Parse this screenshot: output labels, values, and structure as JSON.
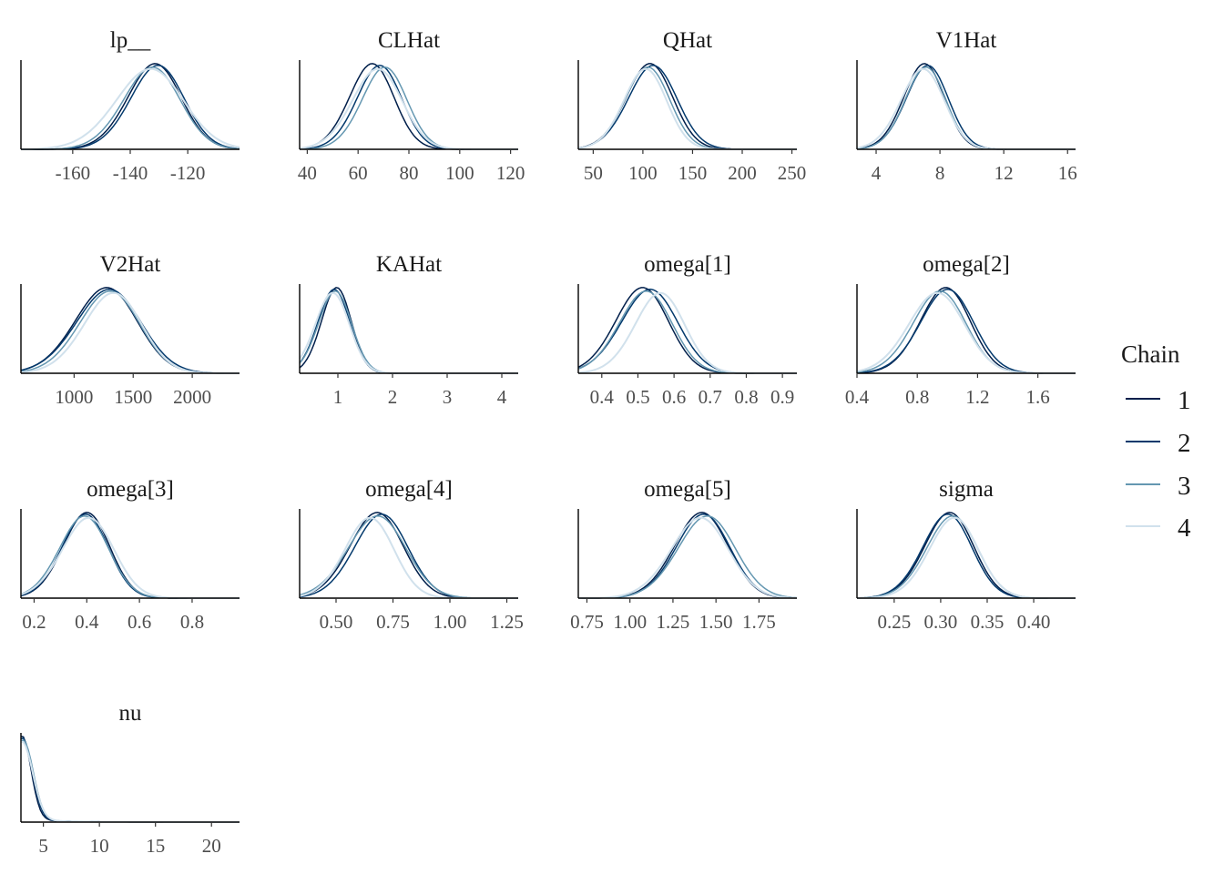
{
  "chart_data": {
    "type": "density",
    "legend": {
      "title": "Chain",
      "placement": "right",
      "entries": [
        "1",
        "2",
        "3",
        "4"
      ],
      "colors": [
        "#011f4b",
        "#03396c",
        "#6497b1",
        "#d1e1ec"
      ]
    },
    "panels": [
      {
        "name": "lp__",
        "xlim": [
          -178,
          -102
        ],
        "ticks": [
          -160,
          -140,
          -120
        ],
        "tick_labels": [
          "-160",
          "-140",
          "-120"
        ],
        "series": [
          {
            "chain": "1",
            "mode": -133,
            "sd": 9.5
          },
          {
            "chain": "2",
            "mode": -132,
            "sd": 9.5
          },
          {
            "chain": "3",
            "mode": -134,
            "sd": 10
          },
          {
            "chain": "4",
            "mode": -135,
            "sd": 12
          }
        ]
      },
      {
        "name": "CLHat",
        "xlim": [
          37,
          123
        ],
        "ticks": [
          40,
          60,
          80,
          100,
          120
        ],
        "tick_labels": [
          "40",
          "60",
          "80",
          "100",
          "120"
        ],
        "series": [
          {
            "chain": "1",
            "mode": 64,
            "sd": 9
          },
          {
            "chain": "2",
            "mode": 67,
            "sd": 9
          },
          {
            "chain": "3",
            "mode": 69,
            "sd": 9
          },
          {
            "chain": "4",
            "mode": 66,
            "sd": 10
          }
        ]
      },
      {
        "name": "QHat",
        "xlim": [
          35,
          255
        ],
        "ticks": [
          50,
          100,
          150,
          200,
          250
        ],
        "tick_labels": [
          "50",
          "100",
          "150",
          "200",
          "250"
        ],
        "series": [
          {
            "chain": "1",
            "mode": 103,
            "sd": 24
          },
          {
            "chain": "2",
            "mode": 106,
            "sd": 25
          },
          {
            "chain": "3",
            "mode": 101,
            "sd": 23
          },
          {
            "chain": "4",
            "mode": 99,
            "sd": 22
          }
        ]
      },
      {
        "name": "V1Hat",
        "xlim": [
          2.8,
          16.5
        ],
        "ticks": [
          4,
          8,
          12,
          16
        ],
        "tick_labels": [
          "4",
          "8",
          "12",
          "16"
        ],
        "series": [
          {
            "chain": "1",
            "mode": 6.8,
            "sd": 1.3
          },
          {
            "chain": "2",
            "mode": 7.0,
            "sd": 1.35
          },
          {
            "chain": "3",
            "mode": 6.9,
            "sd": 1.3
          },
          {
            "chain": "4",
            "mode": 6.7,
            "sd": 1.4
          }
        ]
      },
      {
        "name": "V2Hat",
        "xlim": [
          550,
          2400
        ],
        "ticks": [
          1000,
          1500,
          2000
        ],
        "tick_labels": [
          "1000",
          "1500",
          "2000"
        ],
        "series": [
          {
            "chain": "1",
            "mode": 1230,
            "sd": 270
          },
          {
            "chain": "2",
            "mode": 1250,
            "sd": 280
          },
          {
            "chain": "3",
            "mode": 1260,
            "sd": 260
          },
          {
            "chain": "4",
            "mode": 1290,
            "sd": 250
          }
        ]
      },
      {
        "name": "KAHat",
        "xlim": [
          0.3,
          4.3
        ],
        "ticks": [
          1,
          2,
          3,
          4
        ],
        "tick_labels": [
          "1",
          "2",
          "3",
          "4"
        ],
        "series": [
          {
            "chain": "1",
            "mode": 0.93,
            "sd": 0.28
          },
          {
            "chain": "2",
            "mode": 0.88,
            "sd": 0.3
          },
          {
            "chain": "3",
            "mode": 0.9,
            "sd": 0.31
          },
          {
            "chain": "4",
            "mode": 0.85,
            "sd": 0.32
          }
        ]
      },
      {
        "name": "omega[1]",
        "xlim": [
          0.335,
          0.94
        ],
        "ticks": [
          0.4,
          0.5,
          0.6,
          0.7,
          0.8,
          0.9
        ],
        "tick_labels": [
          "0.4",
          "0.5",
          "0.6",
          "0.7",
          "0.8",
          "0.9"
        ],
        "series": [
          {
            "chain": "1",
            "mode": 0.5,
            "sd": 0.075
          },
          {
            "chain": "2",
            "mode": 0.52,
            "sd": 0.08
          },
          {
            "chain": "3",
            "mode": 0.51,
            "sd": 0.075
          },
          {
            "chain": "4",
            "mode": 0.55,
            "sd": 0.07
          }
        ]
      },
      {
        "name": "omega[2]",
        "xlim": [
          0.4,
          1.85
        ],
        "ticks": [
          0.4,
          0.8,
          1.2,
          1.6
        ],
        "tick_labels": [
          "0.4",
          "0.8",
          "1.2",
          "1.6"
        ],
        "series": [
          {
            "chain": "1",
            "mode": 0.96,
            "sd": 0.17
          },
          {
            "chain": "2",
            "mode": 0.97,
            "sd": 0.18
          },
          {
            "chain": "3",
            "mode": 0.92,
            "sd": 0.18
          },
          {
            "chain": "4",
            "mode": 0.9,
            "sd": 0.19
          }
        ]
      },
      {
        "name": "omega[3]",
        "xlim": [
          0.15,
          0.98
        ],
        "ticks": [
          0.2,
          0.4,
          0.6,
          0.8
        ],
        "tick_labels": [
          "0.2",
          "0.4",
          "0.6",
          "0.8"
        ],
        "series": [
          {
            "chain": "1",
            "mode": 0.385,
            "sd": 0.09
          },
          {
            "chain": "2",
            "mode": 0.38,
            "sd": 0.09
          },
          {
            "chain": "3",
            "mode": 0.375,
            "sd": 0.095
          },
          {
            "chain": "4",
            "mode": 0.39,
            "sd": 0.1
          }
        ]
      },
      {
        "name": "omega[4]",
        "xlim": [
          0.34,
          1.3
        ],
        "ticks": [
          0.5,
          0.75,
          1.0,
          1.25
        ],
        "tick_labels": [
          "0.50",
          "0.75",
          "1.00",
          "1.25"
        ],
        "series": [
          {
            "chain": "1",
            "mode": 0.66,
            "sd": 0.12
          },
          {
            "chain": "2",
            "mode": 0.68,
            "sd": 0.12
          },
          {
            "chain": "3",
            "mode": 0.66,
            "sd": 0.13
          },
          {
            "chain": "4",
            "mode": 0.63,
            "sd": 0.11
          }
        ]
      },
      {
        "name": "omega[5]",
        "xlim": [
          0.7,
          1.97
        ],
        "ticks": [
          0.75,
          1.0,
          1.25,
          1.5,
          1.75
        ],
        "tick_labels": [
          "0.75",
          "1.00",
          "1.25",
          "1.50",
          "1.75"
        ],
        "series": [
          {
            "chain": "1",
            "mode": 1.39,
            "sd": 0.16
          },
          {
            "chain": "2",
            "mode": 1.4,
            "sd": 0.16
          },
          {
            "chain": "3",
            "mode": 1.42,
            "sd": 0.17
          },
          {
            "chain": "4",
            "mode": 1.38,
            "sd": 0.17
          }
        ]
      },
      {
        "name": "sigma",
        "xlim": [
          0.21,
          0.445
        ],
        "ticks": [
          0.25,
          0.3,
          0.35,
          0.4
        ],
        "tick_labels": [
          "0.25",
          "0.30",
          "0.35",
          "0.40"
        ],
        "series": [
          {
            "chain": "1",
            "mode": 0.305,
            "sd": 0.027
          },
          {
            "chain": "2",
            "mode": 0.303,
            "sd": 0.027
          },
          {
            "chain": "3",
            "mode": 0.308,
            "sd": 0.028
          },
          {
            "chain": "4",
            "mode": 0.31,
            "sd": 0.027
          }
        ]
      },
      {
        "name": "nu",
        "xlim": [
          3,
          22.5
        ],
        "ticks": [
          5,
          10,
          15,
          20
        ],
        "tick_labels": [
          "5",
          "10",
          "15",
          "20"
        ],
        "series": [
          {
            "chain": "1",
            "mode": 3.1,
            "sd": 0.8
          },
          {
            "chain": "2",
            "mode": 3.15,
            "sd": 0.85
          },
          {
            "chain": "3",
            "mode": 3.2,
            "sd": 0.9
          },
          {
            "chain": "4",
            "mode": 3.1,
            "sd": 0.95
          }
        ]
      }
    ]
  }
}
